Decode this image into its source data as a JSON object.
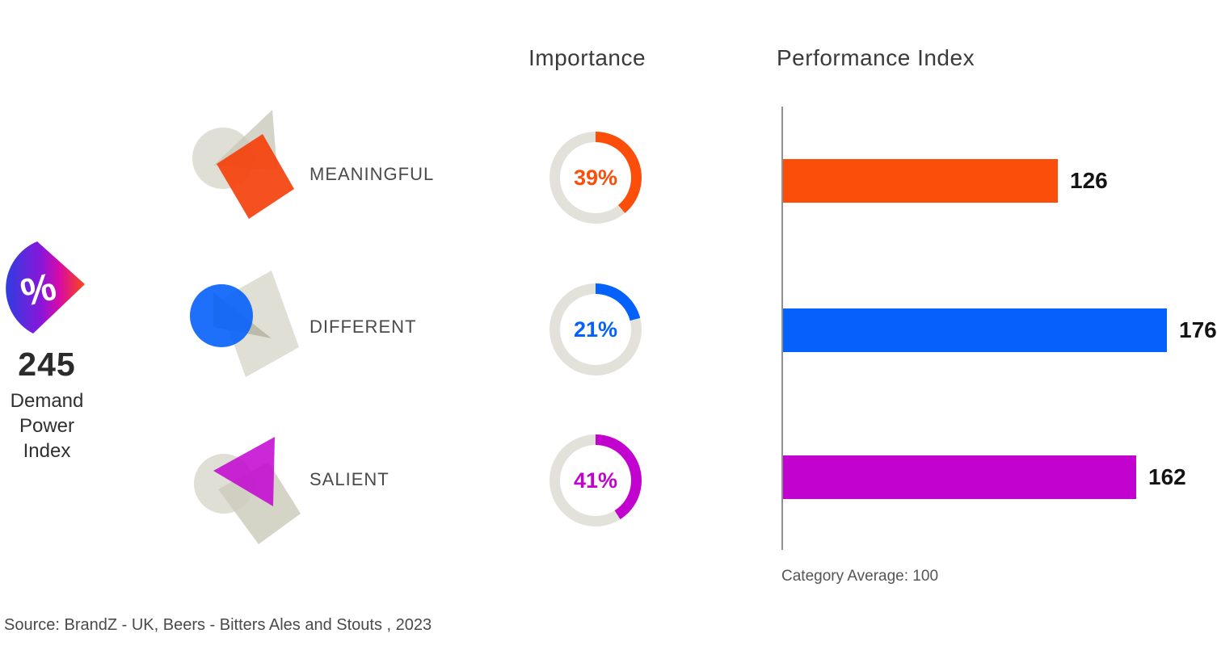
{
  "brand_metric": {
    "score": "245",
    "label_lines": [
      "Demand",
      "Power",
      "Index"
    ],
    "percent_symbol": "%"
  },
  "columns": {
    "importance_title": "Importance",
    "performance_title": "Performance Index"
  },
  "rows": [
    {
      "name": "MEANINGFUL",
      "importance_pct": 39,
      "importance_label": "39%",
      "performance": 126,
      "color": "#FB4E0A"
    },
    {
      "name": "DIFFERENT",
      "importance_pct": 21,
      "importance_label": "21%",
      "performance": 176,
      "color": "#0561FB"
    },
    {
      "name": "SALIENT",
      "importance_pct": 41,
      "importance_label": "41%",
      "performance": 162,
      "color": "#C203D0"
    }
  ],
  "axis": {
    "category_average_label": "Category Average: 100"
  },
  "source": "Source: BrandZ - UK, Beers - Bitters Ales and Stouts , 2023",
  "colors": {
    "orange": "#FB4E0A",
    "blue": "#0561FB",
    "magenta": "#C203D0",
    "donut_track": "#E3E2DA",
    "beige_shape": "#D7D6C9",
    "title_text": "#3a3a3a",
    "axis_line": "#8f8f8f"
  },
  "chart_data": {
    "type": "bar",
    "title": "Demand Power Index",
    "demand_power_index": 245,
    "categories": [
      "MEANINGFUL",
      "DIFFERENT",
      "SALIENT"
    ],
    "series": [
      {
        "name": "Importance (%)",
        "values": [
          39,
          21,
          41
        ],
        "display": "donut"
      },
      {
        "name": "Performance Index",
        "values": [
          126,
          176,
          162
        ],
        "display": "horizontal-bar"
      }
    ],
    "category_average": 100,
    "xlim_performance": [
      0,
      200
    ],
    "bar_colors": [
      "#FB4E0A",
      "#0561FB",
      "#C203D0"
    ],
    "legend_position": "none",
    "grid": false,
    "source": "Source: BrandZ - UK, Beers - Bitters Ales and Stouts , 2023"
  }
}
